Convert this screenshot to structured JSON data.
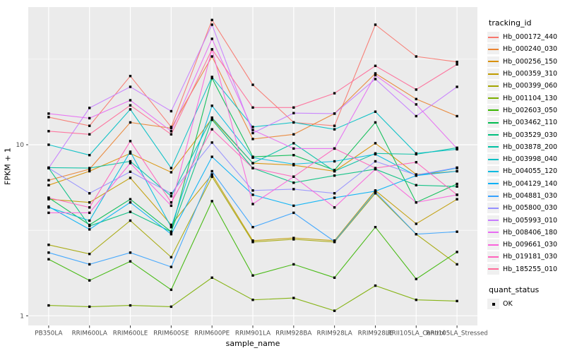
{
  "chart_data": {
    "type": "line",
    "title": "",
    "xlabel": "sample_name",
    "ylabel": "FPKM + 1",
    "y_scale": "log10",
    "y_ticks": [
      "1",
      "10"
    ],
    "y_tick_values": [
      1,
      10
    ],
    "y_minor_values": [
      3.162,
      31.62
    ],
    "ylim": [
      0.88,
      63.8
    ],
    "grid": true,
    "panel_bg": "#EBEBEB",
    "grid_color": "#FFFFFF",
    "tick_label_color": "#4D4D4D",
    "tick_mark_color": "#333333",
    "marker_color": "#000000",
    "marker_shape": "square",
    "categories": [
      "PB350LA",
      "RRIM600LA",
      "RRIM600LE",
      "RRIM600SE",
      "RRIM600PE",
      "RRIM901LA",
      "RRIM928BA",
      "RRIM928LA",
      "RRIM928LE",
      "RRII105LA_Control",
      "RRII105LA_Stressed"
    ],
    "series": [
      {
        "name": "Hb_000172_440",
        "color": "#F8766D",
        "values": [
          14.5,
          12.9,
          25.2,
          12.7,
          53.6,
          22.4,
          13.5,
          12.9,
          50.3,
          32.8,
          30.5
        ]
      },
      {
        "name": "Hb_000240_030",
        "color": "#EA8331",
        "values": [
          6.2,
          7.2,
          13.5,
          12.5,
          32.8,
          10.8,
          11.5,
          15.2,
          26.1,
          18.5,
          14.7
        ]
      },
      {
        "name": "Hb_000256_150",
        "color": "#D89000",
        "values": [
          5.8,
          7.0,
          8.9,
          6.9,
          14.2,
          7.8,
          7.6,
          7.0,
          10.2,
          6.7,
          7.0
        ]
      },
      {
        "name": "Hb_000359_310",
        "color": "#C09B00",
        "values": [
          4.8,
          4.6,
          6.4,
          3.4,
          6.7,
          2.75,
          2.85,
          2.75,
          5.4,
          3.45,
          4.8
        ]
      },
      {
        "name": "Hb_000399_060",
        "color": "#A3A500",
        "values": [
          2.6,
          2.3,
          3.6,
          2.2,
          6.5,
          2.7,
          2.8,
          2.7,
          5.2,
          3.0,
          2.0
        ]
      },
      {
        "name": "Hb_001104_130",
        "color": "#7CAE00",
        "values": [
          1.15,
          1.13,
          1.15,
          1.13,
          1.67,
          1.24,
          1.27,
          1.07,
          1.5,
          1.24,
          1.22
        ]
      },
      {
        "name": "Hb_002603_050",
        "color": "#39B600",
        "values": [
          2.14,
          1.61,
          2.08,
          1.42,
          4.68,
          1.72,
          2.0,
          1.67,
          3.3,
          1.64,
          2.36
        ]
      },
      {
        "name": "Hb_003462_110",
        "color": "#00BB4E",
        "values": [
          4.9,
          3.4,
          4.8,
          3.1,
          24.5,
          8.5,
          8.7,
          7.1,
          13.5,
          4.6,
          5.9
        ]
      },
      {
        "name": "Hb_003529_030",
        "color": "#00BF7D",
        "values": [
          7.3,
          3.35,
          4.05,
          3.1,
          14.0,
          7.3,
          6.0,
          6.6,
          7.2,
          5.8,
          5.7
        ]
      },
      {
        "name": "Hb_003878_200",
        "color": "#00C1A3",
        "values": [
          7.35,
          7.3,
          8.0,
          5.0,
          14.4,
          7.8,
          10.2,
          7.0,
          8.9,
          8.8,
          9.6
        ]
      },
      {
        "name": "Hb_003998_040",
        "color": "#00BFC4",
        "values": [
          10.0,
          8.7,
          16.1,
          7.3,
          24.9,
          12.7,
          13.5,
          12.3,
          15.6,
          8.9,
          9.4
        ]
      },
      {
        "name": "Hb_004055_120",
        "color": "#00BAE0",
        "values": [
          4.3,
          3.6,
          9.1,
          3.3,
          16.9,
          8.4,
          7.7,
          8.0,
          8.8,
          6.6,
          7.3
        ]
      },
      {
        "name": "Hb_004129_140",
        "color": "#00B0F6",
        "values": [
          4.35,
          3.2,
          4.6,
          3.0,
          8.5,
          5.1,
          4.4,
          4.9,
          5.35,
          6.6,
          7.0
        ]
      },
      {
        "name": "Hb_004881_030",
        "color": "#35A2FF",
        "values": [
          2.34,
          2.0,
          2.34,
          1.93,
          7.0,
          3.3,
          4.0,
          2.72,
          5.3,
          3.0,
          3.1
        ]
      },
      {
        "name": "Hb_005800_030",
        "color": "#9590FF",
        "values": [
          7.3,
          5.2,
          6.95,
          5.2,
          10.3,
          5.4,
          5.5,
          5.2,
          8.0,
          6.65,
          7.35
        ]
      },
      {
        "name": "Hb_005993_010",
        "color": "#C77CFF",
        "values": [
          7.3,
          16.4,
          21.8,
          15.7,
          50.3,
          11.7,
          15.3,
          15.2,
          24.2,
          14.7,
          21.8
        ]
      },
      {
        "name": "Hb_008406_180",
        "color": "#E76BF3",
        "values": [
          15.2,
          14.3,
          18.2,
          12.0,
          41.6,
          12.2,
          9.5,
          9.5,
          25.5,
          17.2,
          9.5
        ]
      },
      {
        "name": "Hb_009661_030",
        "color": "#FA62DB",
        "values": [
          4.0,
          4.0,
          7.8,
          4.4,
          36.1,
          4.5,
          6.5,
          4.3,
          7.2,
          4.6,
          5.1
        ]
      },
      {
        "name": "Hb_019181_030",
        "color": "#FF62BC",
        "values": [
          4.9,
          4.3,
          10.5,
          4.6,
          12.3,
          7.3,
          6.5,
          9.5,
          7.3,
          7.9,
          5.1
        ]
      },
      {
        "name": "Hb_185255_010",
        "color": "#FF6A98",
        "values": [
          12.0,
          11.5,
          17.0,
          11.5,
          36.1,
          16.5,
          16.5,
          20.0,
          28.9,
          21.0,
          29.5
        ]
      }
    ],
    "legend": {
      "title": "tracking_id",
      "quant_title": "quant_status",
      "quant_items": [
        {
          "label": "OK",
          "shape": "square",
          "color": "#000000"
        }
      ],
      "position": "right"
    }
  }
}
